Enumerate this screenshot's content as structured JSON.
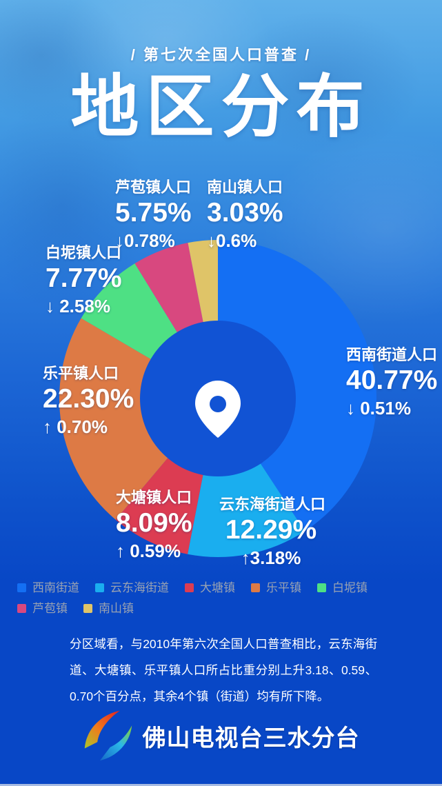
{
  "header": {
    "kicker": "/ 第七次全国人口普查 /",
    "title": "地区分布"
  },
  "chart_data": {
    "type": "pie",
    "donut": true,
    "title": "地区分布",
    "start_angle_deg": 0,
    "direction": "clockwise",
    "legend_position": "bottom",
    "center_icon": "location-pin",
    "series": [
      {
        "name": "西南街道",
        "callout_label": "西南街道人口",
        "value_pct": 40.77,
        "display": "40.77%",
        "change": "↓ 0.51%",
        "change_dir": "down",
        "color": "#146FF3"
      },
      {
        "name": "云东海街道",
        "callout_label": "云东海街道人口",
        "value_pct": 12.29,
        "display": "12.29%",
        "change": "↑3.18%",
        "change_dir": "up",
        "color": "#1AAEEF"
      },
      {
        "name": "大塘镇",
        "callout_label": "大塘镇人口",
        "value_pct": 8.09,
        "display": "8.09%",
        "change": "↑ 0.59%",
        "change_dir": "up",
        "color": "#DC3C52"
      },
      {
        "name": "乐平镇",
        "callout_label": "乐平镇人口",
        "value_pct": 22.3,
        "display": "22.30%",
        "change": "↑ 0.70%",
        "change_dir": "up",
        "color": "#DD7A45"
      },
      {
        "name": "白坭镇",
        "callout_label": "白坭镇人口",
        "value_pct": 7.77,
        "display": "7.77%",
        "change": "↓ 2.58%",
        "change_dir": "down",
        "color": "#4EE084"
      },
      {
        "name": "芦苞镇",
        "callout_label": "芦苞镇人口",
        "value_pct": 5.75,
        "display": "5.75%",
        "change": "↓0.78%",
        "change_dir": "down",
        "color": "#D8487F"
      },
      {
        "name": "南山镇",
        "callout_label": "南山镇人口",
        "value_pct": 3.03,
        "display": "3.03%",
        "change": "↓0.6%",
        "change_dir": "down",
        "color": "#DFC468"
      }
    ]
  },
  "colors": {
    "donut_center": "#1153D4",
    "pin": "#FFFFFF",
    "legend_text": "#99A2B2",
    "background_top": "#5FB0EA",
    "background_bottom": "#0847C6"
  },
  "summary": {
    "text": "分区域看，与2010年第六次全国人口普查相比，云东海街道、大塘镇、乐平镇人口所占比重分别上升3.18、0.59、0.70个百分点，其余4个镇（街道）均有所下降。"
  },
  "footer": {
    "station_name": "佛山电视台三水分台",
    "logo": "foshan-tv-logo"
  }
}
